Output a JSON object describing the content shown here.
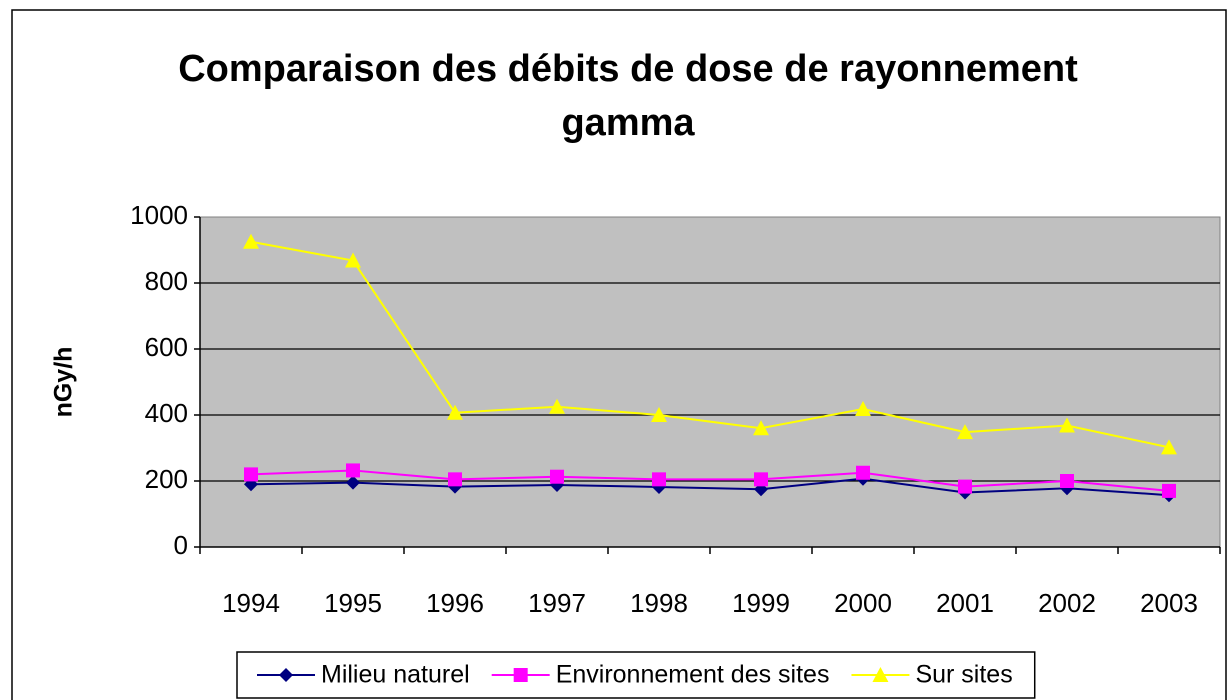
{
  "chart_data": {
    "type": "line",
    "title": "Comparaison des débits de dose de rayonnement gamma",
    "y_label": "nGy/h",
    "categories": [
      "1994",
      "1995",
      "1996",
      "1997",
      "1998",
      "1999",
      "2000",
      "2001",
      "2002",
      "2003"
    ],
    "series": [
      {
        "name": "Milieu naturel",
        "color": "#000080",
        "marker": "diamond",
        "values": [
          190,
          195,
          183,
          188,
          182,
          175,
          207,
          165,
          178,
          157
        ]
      },
      {
        "name": "Environnement des sites",
        "color": "#ff00ff",
        "marker": "square",
        "values": [
          220,
          232,
          205,
          213,
          205,
          205,
          225,
          183,
          200,
          170
        ]
      },
      {
        "name": "Sur sites",
        "color": "#ffff00",
        "marker": "triangle",
        "values": [
          925,
          868,
          407,
          425,
          400,
          360,
          418,
          348,
          368,
          302
        ]
      }
    ],
    "ylim": [
      0,
      1000
    ],
    "yticks": [
      0,
      200,
      400,
      600,
      800,
      1000
    ],
    "grid": true,
    "legend": "bottom"
  }
}
